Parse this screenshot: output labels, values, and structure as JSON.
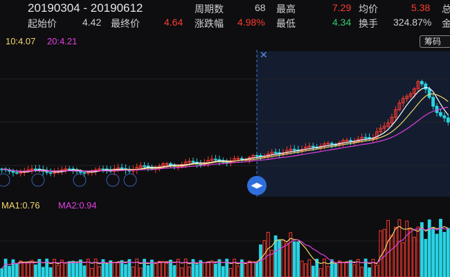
{
  "header": {
    "date_range": "20190304  - 20190612",
    "row1": [
      {
        "label": "周期数",
        "value": "68",
        "color": "#cfcfcf"
      },
      {
        "label": "最高",
        "value": "7.29",
        "color": "#ff3b30"
      },
      {
        "label": "均价",
        "value": "5.38",
        "color": "#ff3b30"
      },
      {
        "label": "总",
        "value": "",
        "color": "#cfcfcf"
      }
    ],
    "row2": [
      {
        "label": "起始价",
        "value": "4.42",
        "color": "#cfcfcf"
      },
      {
        "label": "最终价",
        "value": "4.64",
        "color": "#ff3b30"
      },
      {
        "label": "涨跌幅",
        "value": "4.98%",
        "color": "#ff3b30"
      },
      {
        "label": "最低",
        "value": "4.34",
        "color": "#33c96a"
      },
      {
        "label": "换手",
        "value": "324.87%",
        "color": "#cfcfcf"
      },
      {
        "label": "金",
        "value": "",
        "color": "#cfcfcf"
      }
    ]
  },
  "toolbar": {
    "chip_label": "筹码"
  },
  "ma": {
    "ma10": "10:4.07",
    "ma20": "20:4.21",
    "ma10_color": "#f5d76e",
    "ma20_color": "#e040e0"
  },
  "volume": {
    "ma1": "MA1:0.76",
    "ma2": "MA2:0.94",
    "ma1_color": "#f5d76e",
    "ma2_color": "#e040e0"
  },
  "colors": {
    "up": "#ff3b30",
    "down": "#29d3e3",
    "selection": "#2f6fdb",
    "bg": "#0e0e10"
  },
  "icons": {
    "close": "close-icon",
    "handle": "drag-handle-icon"
  }
}
